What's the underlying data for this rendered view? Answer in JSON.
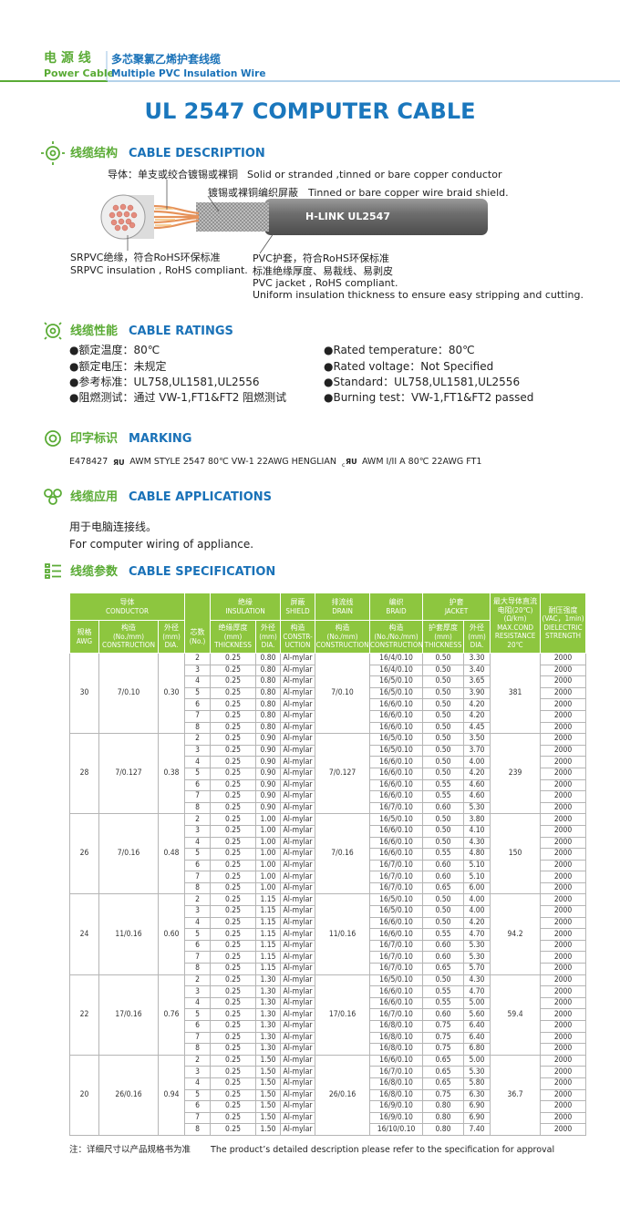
{
  "header": {
    "cn_left": "电 源 线",
    "en_left": "Power Cable",
    "cn_right": "多芯聚氯乙烯护套线缆",
    "en_right": "Multiple PVC Insulation Wire"
  },
  "title": "UL 2547 COMPUTER CABLE",
  "description": {
    "cn": "线缆结构",
    "en": "CABLE DESCRIPTION",
    "conductor_cn": "导体：单支或绞合镀锡或裸铜",
    "conductor_en": "Solid or stranded ,tinned or bare copper conductor",
    "shield_cn": "镀锡或裸铜编织屏蔽",
    "shield_en": "Tinned or bare copper wire braid shield.",
    "cable_print": "H-LINK  UL2547",
    "insulation_cn": "SRPVC绝缘，符合RoHS环保标准",
    "insulation_en": "SRPVC insulation , RoHS compliant.",
    "jacket_cn": "PVC护套，符合RoHS环保标准",
    "jacket_cn2": "标准绝缘厚度、易裁线、易剥皮",
    "jacket_en": "PVC  jacket , RoHS compliant.",
    "jacket_en2": "Uniform insulation thickness to ensure easy stripping and cutting."
  },
  "ratings": {
    "cn": "线缆性能",
    "en": "CABLE RATINGS",
    "left": [
      "●额定温度：80℃",
      "●额定电压：未规定",
      "●参考标准：UL758,UL1581,UL2556",
      "●阻燃测试：通过 VW-1,FT1&FT2 阻燃测试"
    ],
    "right": [
      "●Rated temperature：80℃",
      "●Rated voltage：Not Specified",
      "●Standard：UL758,UL1581,UL2556",
      "●Burning test：VW-1,FT1&FT2 passed"
    ]
  },
  "marking": {
    "cn": "印字标识",
    "en": "MARKING",
    "parts": [
      "E478427",
      "AWM  STYLE  2547  80℃  VW-1  22AWG  HENGLIAN",
      "AWM  I/II A  80℃  22AWG  FT1"
    ]
  },
  "applications": {
    "cn": "线缆应用",
    "en": "CABLE APPLICATIONS",
    "text_cn": "用于电脑连接线。",
    "text_en": "For computer wiring of appliance."
  },
  "specification": {
    "cn": "线缆参数",
    "en": "CABLE SPECIFICATION"
  },
  "table": {
    "header": {
      "conductor": [
        "导体",
        "CONDUCTOR"
      ],
      "insulation": [
        "绝缘",
        "INSULATION"
      ],
      "shield": [
        "屏蔽",
        "SHIELD"
      ],
      "drain": [
        "排流线",
        "DRAIN"
      ],
      "braid": [
        "编织",
        "BRAID"
      ],
      "jacket": [
        "护套",
        "JACKET"
      ],
      "resistance": [
        "最大导体直流",
        "电阻(20℃)",
        "(Ω/km)",
        "MAX.COND",
        "RESISTANCE",
        "20℃"
      ],
      "strength": [
        "耐压强度",
        "(VAC，1min)",
        "DIELECTRIC",
        "STRENGTH"
      ],
      "awg": [
        "规格",
        "AWG"
      ],
      "construction": [
        "构造",
        "(No./mm)",
        "CONSTRUCTION"
      ],
      "dia": [
        "外径",
        "(mm)",
        "DIA."
      ],
      "cores": [
        "芯数",
        "(No.)"
      ],
      "ins_thick": [
        "绝缘厚度",
        "(mm)",
        "THICKNESS"
      ],
      "ins_dia": [
        "外径",
        "(mm)",
        "DIA."
      ],
      "shield_constr": [
        "构造",
        "CONSTR-",
        "UCTION"
      ],
      "drain_constr": [
        "构造",
        "(No./mm)",
        "CONSTRUCTION"
      ],
      "braid_constr": [
        "构造",
        "(No./No./mm)",
        "CONSTRUCTION"
      ],
      "jacket_thick": [
        "护套厚度",
        "(mm)",
        "THICKNESS"
      ],
      "jacket_dia": [
        "外径",
        "(mm)",
        "DIA."
      ]
    },
    "groups": [
      {
        "awg": "30",
        "construction": "7/0.10",
        "dia": "0.30",
        "drain": "7/0.10",
        "resistance": "381",
        "rows": [
          [
            "2",
            "0.25",
            "0.80",
            "Al-mylar",
            "16/4/0.10",
            "0.50",
            "3.30",
            "2000"
          ],
          [
            "3",
            "0.25",
            "0.80",
            "Al-mylar",
            "16/4/0.10",
            "0.50",
            "3.40",
            "2000"
          ],
          [
            "4",
            "0.25",
            "0.80",
            "Al-mylar",
            "16/5/0.10",
            "0.50",
            "3.65",
            "2000"
          ],
          [
            "5",
            "0.25",
            "0.80",
            "Al-mylar",
            "16/5/0.10",
            "0.50",
            "3.90",
            "2000"
          ],
          [
            "6",
            "0.25",
            "0.80",
            "Al-mylar",
            "16/6/0.10",
            "0.50",
            "4.20",
            "2000"
          ],
          [
            "7",
            "0.25",
            "0.80",
            "Al-mylar",
            "16/6/0.10",
            "0.50",
            "4.20",
            "2000"
          ],
          [
            "8",
            "0.25",
            "0.80",
            "Al-mylar",
            "16/6/0.10",
            "0.50",
            "4.45",
            "2000"
          ]
        ]
      },
      {
        "awg": "28",
        "construction": "7/0.127",
        "dia": "0.38",
        "drain": "7/0.127",
        "resistance": "239",
        "rows": [
          [
            "2",
            "0.25",
            "0.90",
            "Al-mylar",
            "16/5/0.10",
            "0.50",
            "3.50",
            "2000"
          ],
          [
            "3",
            "0.25",
            "0.90",
            "Al-mylar",
            "16/5/0.10",
            "0.50",
            "3.70",
            "2000"
          ],
          [
            "4",
            "0.25",
            "0.90",
            "Al-mylar",
            "16/6/0.10",
            "0.50",
            "4.00",
            "2000"
          ],
          [
            "5",
            "0.25",
            "0.90",
            "Al-mylar",
            "16/6/0.10",
            "0.50",
            "4.20",
            "2000"
          ],
          [
            "6",
            "0.25",
            "0.90",
            "Al-mylar",
            "16/6/0.10",
            "0.55",
            "4.60",
            "2000"
          ],
          [
            "7",
            "0.25",
            "0.90",
            "Al-mylar",
            "16/6/0.10",
            "0.55",
            "4.60",
            "2000"
          ],
          [
            "8",
            "0.25",
            "0.90",
            "Al-mylar",
            "16/7/0.10",
            "0.60",
            "5.30",
            "2000"
          ]
        ]
      },
      {
        "awg": "26",
        "construction": "7/0.16",
        "dia": "0.48",
        "drain": "7/0.16",
        "resistance": "150",
        "rows": [
          [
            "2",
            "0.25",
            "1.00",
            "Al-mylar",
            "16/5/0.10",
            "0.50",
            "3.80",
            "2000"
          ],
          [
            "3",
            "0.25",
            "1.00",
            "Al-mylar",
            "16/6/0.10",
            "0.50",
            "4.10",
            "2000"
          ],
          [
            "4",
            "0.25",
            "1.00",
            "Al-mylar",
            "16/6/0.10",
            "0.50",
            "4.30",
            "2000"
          ],
          [
            "5",
            "0.25",
            "1.00",
            "Al-mylar",
            "16/6/0.10",
            "0.55",
            "4.80",
            "2000"
          ],
          [
            "6",
            "0.25",
            "1.00",
            "Al-mylar",
            "16/7/0.10",
            "0.60",
            "5.10",
            "2000"
          ],
          [
            "7",
            "0.25",
            "1.00",
            "Al-mylar",
            "16/7/0.10",
            "0.60",
            "5.10",
            "2000"
          ],
          [
            "8",
            "0.25",
            "1.00",
            "Al-mylar",
            "16/7/0.10",
            "0.65",
            "6.00",
            "2000"
          ]
        ]
      },
      {
        "awg": "24",
        "construction": "11/0.16",
        "dia": "0.60",
        "drain": "11/0.16",
        "resistance": "94.2",
        "rows": [
          [
            "2",
            "0.25",
            "1.15",
            "Al-mylar",
            "16/5/0.10",
            "0.50",
            "4.00",
            "2000"
          ],
          [
            "3",
            "0.25",
            "1.15",
            "Al-mylar",
            "16/5/0.10",
            "0.50",
            "4.00",
            "2000"
          ],
          [
            "4",
            "0.25",
            "1.15",
            "Al-mylar",
            "16/6/0.10",
            "0.50",
            "4.20",
            "2000"
          ],
          [
            "5",
            "0.25",
            "1.15",
            "Al-mylar",
            "16/6/0.10",
            "0.55",
            "4.70",
            "2000"
          ],
          [
            "6",
            "0.25",
            "1.15",
            "Al-mylar",
            "16/7/0.10",
            "0.60",
            "5.30",
            "2000"
          ],
          [
            "7",
            "0.25",
            "1.15",
            "Al-mylar",
            "16/7/0.10",
            "0.60",
            "5.30",
            "2000"
          ],
          [
            "8",
            "0.25",
            "1.15",
            "Al-mylar",
            "16/7/0.10",
            "0.65",
            "5.70",
            "2000"
          ]
        ]
      },
      {
        "awg": "22",
        "construction": "17/0.16",
        "dia": "0.76",
        "drain": "17/0.16",
        "resistance": "59.4",
        "rows": [
          [
            "2",
            "0.25",
            "1.30",
            "Al-mylar",
            "16/5/0.10",
            "0.50",
            "4.30",
            "2000"
          ],
          [
            "3",
            "0.25",
            "1.30",
            "Al-mylar",
            "16/6/0.10",
            "0.55",
            "4.70",
            "2000"
          ],
          [
            "4",
            "0.25",
            "1.30",
            "Al-mylar",
            "16/6/0.10",
            "0.55",
            "5.00",
            "2000"
          ],
          [
            "5",
            "0.25",
            "1.30",
            "Al-mylar",
            "16/7/0.10",
            "0.60",
            "5.60",
            "2000"
          ],
          [
            "6",
            "0.25",
            "1.30",
            "Al-mylar",
            "16/8/0.10",
            "0.75",
            "6.40",
            "2000"
          ],
          [
            "7",
            "0.25",
            "1.30",
            "Al-mylar",
            "16/8/0.10",
            "0.75",
            "6.40",
            "2000"
          ],
          [
            "8",
            "0.25",
            "1.30",
            "Al-mylar",
            "16/8/0.10",
            "0.75",
            "6.80",
            "2000"
          ]
        ]
      },
      {
        "awg": "20",
        "construction": "26/0.16",
        "dia": "0.94",
        "drain": "26/0.16",
        "resistance": "36.7",
        "rows": [
          [
            "2",
            "0.25",
            "1.50",
            "Al-mylar",
            "16/6/0.10",
            "0.65",
            "5.00",
            "2000"
          ],
          [
            "3",
            "0.25",
            "1.50",
            "Al-mylar",
            "16/7/0.10",
            "0.65",
            "5.30",
            "2000"
          ],
          [
            "4",
            "0.25",
            "1.50",
            "Al-mylar",
            "16/8/0.10",
            "0.65",
            "5.80",
            "2000"
          ],
          [
            "5",
            "0.25",
            "1.50",
            "Al-mylar",
            "16/8/0.10",
            "0.75",
            "6.30",
            "2000"
          ],
          [
            "6",
            "0.25",
            "1.50",
            "Al-mylar",
            "16/9/0.10",
            "0.80",
            "6.90",
            "2000"
          ],
          [
            "7",
            "0.25",
            "1.50",
            "Al-mylar",
            "16/9/0.10",
            "0.80",
            "6.90",
            "2000"
          ],
          [
            "8",
            "0.25",
            "1.50",
            "Al-mylar",
            "16/10/0.10",
            "0.80",
            "7.40",
            "2000"
          ]
        ]
      }
    ]
  },
  "footnote": {
    "cn": "注：详细尺寸以产品规格书为准",
    "en": "The product’s detailed description please refer to the specification for approval"
  }
}
